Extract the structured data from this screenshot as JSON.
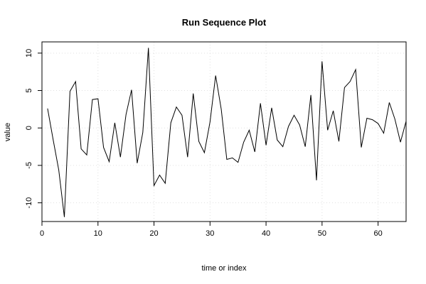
{
  "chart_data": {
    "type": "line",
    "title": "Run Sequence Plot",
    "xlabel": "time or index",
    "ylabel": "value",
    "xlim": [
      0,
      65
    ],
    "ylim": [
      -12.5,
      11.5
    ],
    "xticks": [
      0,
      10,
      20,
      30,
      40,
      50,
      60
    ],
    "yticks": [
      -10,
      -5,
      0,
      5,
      10
    ],
    "grid": true,
    "line_color": "#000000",
    "grid_color": "#e0e0e0",
    "series": [
      {
        "x": [
          1,
          2,
          3,
          4,
          5,
          6,
          7,
          8,
          9,
          10,
          11,
          12,
          13,
          14,
          15,
          16,
          17,
          18,
          19,
          20,
          21,
          22,
          23,
          24,
          25,
          26,
          27,
          28,
          29,
          30,
          31,
          32,
          33,
          34,
          35,
          36,
          37,
          38,
          39,
          40,
          41,
          42,
          43,
          44,
          45,
          46,
          47,
          48,
          49,
          50,
          51,
          52,
          53,
          54,
          55,
          56,
          57,
          58,
          59,
          60,
          61,
          62,
          63,
          64,
          65
        ],
        "y": [
          2.6,
          -1.6,
          -5.6,
          -11.9,
          4.9,
          6.2,
          -2.8,
          -3.6,
          3.8,
          3.9,
          -2.6,
          -4.5,
          0.7,
          -3.9,
          1.8,
          5.1,
          -4.7,
          -0.6,
          10.7,
          -7.7,
          -6.3,
          -7.4,
          0.7,
          2.8,
          1.7,
          -3.9,
          4.6,
          -1.8,
          -3.3,
          0.8,
          7.0,
          2.5,
          -4.2,
          -4.0,
          -4.6,
          -1.9,
          -0.3,
          -3.2,
          3.3,
          -2.3,
          2.7,
          -1.6,
          -2.5,
          0.2,
          1.7,
          0.4,
          -2.5,
          4.4,
          -7.0,
          8.9,
          -0.3,
          2.3,
          -1.8,
          5.4,
          6.2,
          7.8,
          -2.6,
          1.3,
          1.1,
          0.6,
          -0.7,
          3.4,
          1.2,
          -1.9,
          0.9
        ]
      }
    ]
  }
}
